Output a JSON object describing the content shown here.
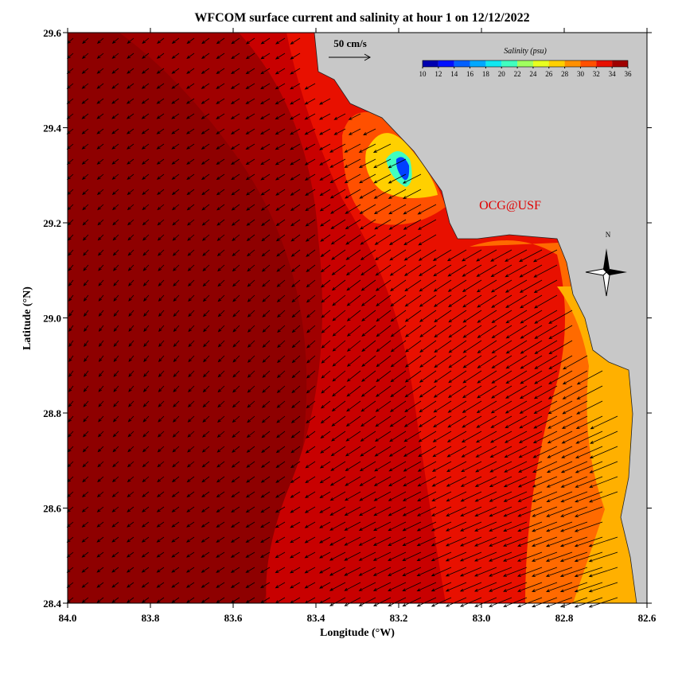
{
  "title": "WFCOM surface current and salinity at hour 1 on 12/12/2022",
  "x_label": "Longitude (°W)",
  "y_label": "Latitude (°N)",
  "xlim": [
    84.0,
    82.6
  ],
  "ylim": [
    28.4,
    29.6
  ],
  "xticks": [
    {
      "value": 84,
      "label": "84.0"
    },
    83.8,
    83.6,
    83.4,
    83.2,
    {
      "value": 83,
      "label": "83.0"
    },
    82.8,
    82.6
  ],
  "yticks": [
    28.4,
    28.6,
    28.8,
    {
      "value": 29,
      "label": "29.0"
    },
    29.2,
    29.4,
    29.6
  ],
  "scale_arrow_label": "50 cm/s",
  "colorbar": {
    "title": "Salinity (psu)",
    "ticks": [
      10,
      12,
      14,
      16,
      18,
      20,
      22,
      24,
      26,
      28,
      30,
      32,
      34,
      36
    ],
    "colors": [
      "#0000b0",
      "#0010ff",
      "#0060ff",
      "#00a8ff",
      "#10e8f0",
      "#40ffc0",
      "#a0ff60",
      "#e8ff20",
      "#ffd000",
      "#ff9000",
      "#ff5000",
      "#e81000",
      "#a00000"
    ]
  },
  "watermark": "OCG@USF",
  "compass_label": "N"
}
